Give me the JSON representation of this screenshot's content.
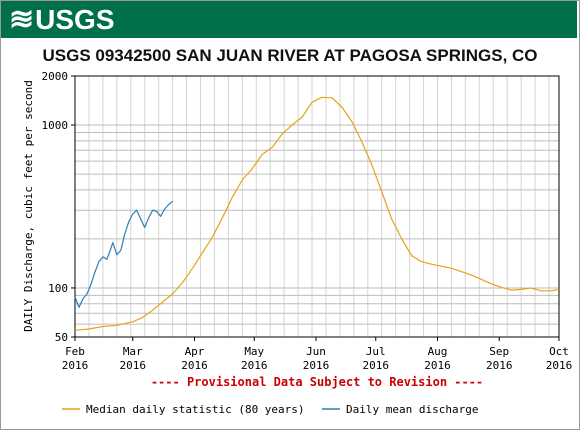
{
  "header": {
    "logo_text": "USGS"
  },
  "chart_data": {
    "type": "line",
    "title": "USGS 09342500 SAN JUAN RIVER AT PAGOSA SPRINGS, CO",
    "ylabel": "DAILY Discharge, cubic feet per second",
    "xlabel": "",
    "y_scale": "log",
    "ylim": [
      50,
      2000
    ],
    "y_ticks": [
      {
        "value": 50,
        "label": "50"
      },
      {
        "value": 100,
        "label": "100"
      },
      {
        "value": 1000,
        "label": "1000"
      },
      {
        "value": 2000,
        "label": "2000"
      }
    ],
    "xlim": [
      "2016-02-01",
      "2016-10-01"
    ],
    "x_ticks": [
      {
        "date": "2016-02-01",
        "month": "Feb",
        "year": "2016"
      },
      {
        "date": "2016-03-01",
        "month": "Mar",
        "year": "2016"
      },
      {
        "date": "2016-04-01",
        "month": "Apr",
        "year": "2016"
      },
      {
        "date": "2016-05-01",
        "month": "May",
        "year": "2016"
      },
      {
        "date": "2016-06-01",
        "month": "Jun",
        "year": "2016"
      },
      {
        "date": "2016-07-01",
        "month": "Jul",
        "year": "2016"
      },
      {
        "date": "2016-08-01",
        "month": "Aug",
        "year": "2016"
      },
      {
        "date": "2016-09-01",
        "month": "Sep",
        "year": "2016"
      },
      {
        "date": "2016-10-01",
        "month": "Oct",
        "year": "2016"
      }
    ],
    "grid": true,
    "annotation": "---- Provisional Data Subject to Revision ----",
    "annotation_color": "#cc0000",
    "series": [
      {
        "name": "Median daily statistic (80 years)",
        "color": "#e8a317",
        "points": [
          [
            "2016-02-01",
            55
          ],
          [
            "2016-02-08",
            56
          ],
          [
            "2016-02-15",
            58
          ],
          [
            "2016-02-22",
            59
          ],
          [
            "2016-03-01",
            62
          ],
          [
            "2016-03-06",
            66
          ],
          [
            "2016-03-11",
            73
          ],
          [
            "2016-03-16",
            82
          ],
          [
            "2016-03-21",
            92
          ],
          [
            "2016-03-26",
            108
          ],
          [
            "2016-03-31",
            132
          ],
          [
            "2016-04-05",
            165
          ],
          [
            "2016-04-10",
            205
          ],
          [
            "2016-04-15",
            270
          ],
          [
            "2016-04-20",
            360
          ],
          [
            "2016-04-25",
            460
          ],
          [
            "2016-04-30",
            540
          ],
          [
            "2016-05-05",
            660
          ],
          [
            "2016-05-10",
            730
          ],
          [
            "2016-05-15",
            880
          ],
          [
            "2016-05-20",
            1000
          ],
          [
            "2016-05-25",
            1120
          ],
          [
            "2016-05-30",
            1380
          ],
          [
            "2016-06-04",
            1480
          ],
          [
            "2016-06-09",
            1470
          ],
          [
            "2016-06-14",
            1290
          ],
          [
            "2016-06-19",
            1050
          ],
          [
            "2016-06-24",
            790
          ],
          [
            "2016-06-29",
            570
          ],
          [
            "2016-07-04",
            390
          ],
          [
            "2016-07-09",
            265
          ],
          [
            "2016-07-14",
            200
          ],
          [
            "2016-07-19",
            158
          ],
          [
            "2016-07-24",
            145
          ],
          [
            "2016-07-29",
            140
          ],
          [
            "2016-08-03",
            136
          ],
          [
            "2016-08-08",
            132
          ],
          [
            "2016-08-13",
            126
          ],
          [
            "2016-08-18",
            120
          ],
          [
            "2016-08-23",
            113
          ],
          [
            "2016-08-28",
            106
          ],
          [
            "2016-09-02",
            101
          ],
          [
            "2016-09-07",
            97
          ],
          [
            "2016-09-12",
            98
          ],
          [
            "2016-09-17",
            100
          ],
          [
            "2016-09-22",
            96
          ],
          [
            "2016-09-27",
            96
          ],
          [
            "2016-10-01",
            98
          ]
        ]
      },
      {
        "name": "Daily mean discharge",
        "color": "#2e7fb5",
        "points": [
          [
            "2016-02-01",
            88
          ],
          [
            "2016-02-03",
            76
          ],
          [
            "2016-02-05",
            86
          ],
          [
            "2016-02-07",
            92
          ],
          [
            "2016-02-09",
            105
          ],
          [
            "2016-02-11",
            125
          ],
          [
            "2016-02-13",
            145
          ],
          [
            "2016-02-15",
            155
          ],
          [
            "2016-02-17",
            150
          ],
          [
            "2016-02-19",
            175
          ],
          [
            "2016-02-20",
            190
          ],
          [
            "2016-02-22",
            160
          ],
          [
            "2016-02-24",
            170
          ],
          [
            "2016-02-26",
            215
          ],
          [
            "2016-02-28",
            255
          ],
          [
            "2016-03-01",
            285
          ],
          [
            "2016-03-03",
            300
          ],
          [
            "2016-03-05",
            265
          ],
          [
            "2016-03-07",
            235
          ],
          [
            "2016-03-09",
            270
          ],
          [
            "2016-03-11",
            300
          ],
          [
            "2016-03-13",
            295
          ],
          [
            "2016-03-15",
            275
          ],
          [
            "2016-03-17",
            305
          ],
          [
            "2016-03-19",
            325
          ],
          [
            "2016-03-21",
            340
          ]
        ]
      }
    ]
  }
}
